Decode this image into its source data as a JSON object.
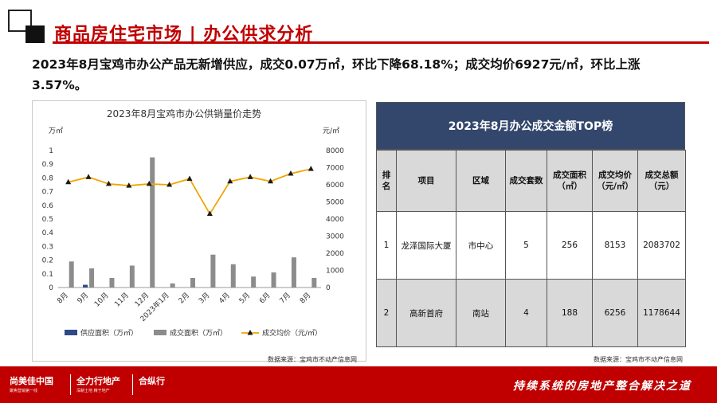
{
  "header": {
    "title": "商品房住宅市场 | 办公供求分析"
  },
  "summary": "2023年8月宝鸡市办公产品无新增供应，成交0.07万㎡，环比下降68.18%；成交均价6927元/㎡，环比上涨3.57%。",
  "chart_data": {
    "type": "bar",
    "title": "2023年8月宝鸡市办公供销量价走势",
    "categories": [
      "8月",
      "9月",
      "10月",
      "11月",
      "12月",
      "2023年1月",
      "2月",
      "3月",
      "4月",
      "5月",
      "6月",
      "7月",
      "8月"
    ],
    "left_unit": "万㎡",
    "right_unit": "元/㎡",
    "ylim_left": [
      0,
      1
    ],
    "yticks_left": [
      "0",
      "0.1",
      "0.2",
      "0.3",
      "0.4",
      "0.5",
      "0.6",
      "0.7",
      "0.8",
      "0.9",
      "1"
    ],
    "ylim_right": [
      0,
      8000
    ],
    "yticks_right": [
      "0",
      "1000",
      "2000",
      "3000",
      "4000",
      "5000",
      "6000",
      "7000",
      "8000"
    ],
    "series": [
      {
        "name": "供应面积（万㎡）",
        "type": "bar",
        "axis": "left",
        "color": "#2e4a86",
        "values": [
          0,
          0.02,
          0,
          0,
          0,
          0,
          0,
          0,
          0,
          0,
          0,
          0,
          0
        ]
      },
      {
        "name": "成交面积（万㎡）",
        "type": "bar",
        "axis": "left",
        "color": "#8c8c8c",
        "values": [
          0.19,
          0.14,
          0.07,
          0.16,
          0.95,
          0.03,
          0.07,
          0.24,
          0.17,
          0.08,
          0.11,
          0.22,
          0.07
        ]
      },
      {
        "name": "成交均价（元/㎡）",
        "type": "line",
        "axis": "right",
        "color": "#f0a500",
        "values": [
          6150,
          6450,
          6050,
          5950,
          6050,
          6000,
          6350,
          4300,
          6200,
          6450,
          6200,
          6650,
          6927
        ]
      }
    ],
    "legend_position": "bottom",
    "source": "数据来源：宝鸡市不动产信息网"
  },
  "table": {
    "title": "2023年8月办公成交金额TOP榜",
    "headers": [
      "排名",
      "项目",
      "区域",
      "成交套数",
      "成交面积（㎡）",
      "成交均价（元/㎡）",
      "成交总额（元）"
    ],
    "rows": [
      [
        "1",
        "龙泽国际大厦",
        "市中心",
        "5",
        "256",
        "8153",
        "2083702"
      ],
      [
        "2",
        "高新首府",
        "南站",
        "4",
        "188",
        "6256",
        "1178644"
      ]
    ],
    "source": "数据来源：宝鸡市不动产信息网"
  },
  "footer": {
    "brand1": "尚美佳中国",
    "brand1_sub": "聚焦营销第一线",
    "brand2": "全力行地产",
    "brand2_sub": "深耕土地 精于地产",
    "brand3": "合纵行",
    "slogan": "持续系统的房地产整合解决之道"
  },
  "colors": {
    "brand_red": "#c00000",
    "table_title_bg": "#33476d",
    "bar_gray": "#8c8c8c",
    "bar_navy": "#2e4a86",
    "line_gold": "#f0a500"
  }
}
